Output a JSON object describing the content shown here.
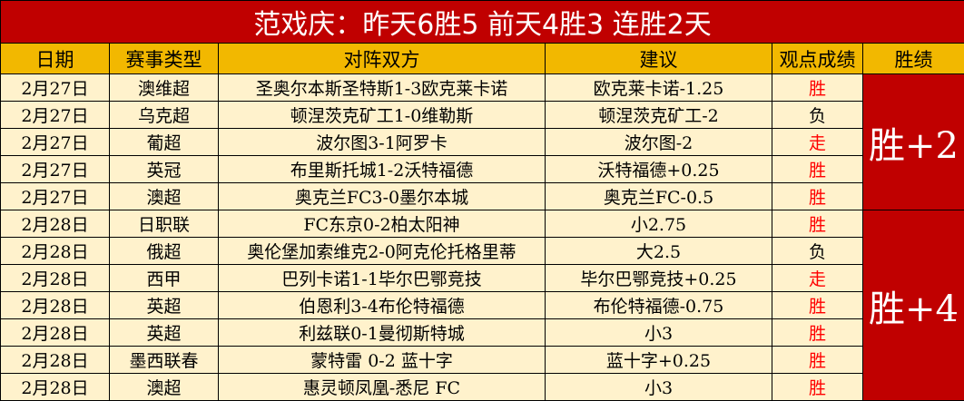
{
  "title": "范戏庆：昨天6胜5 前天4胜3 连胜2天",
  "headers": [
    "日期",
    "赛事类型",
    "对阵双方",
    "建议",
    "观点成绩",
    "胜绩"
  ],
  "colors": {
    "title_bg": "#c00000",
    "header_bg": "#f2b800",
    "row_bg": "#fff2cc",
    "win_text": "#ff0000"
  },
  "groups": [
    {
      "summary": "胜+2",
      "rows": [
        {
          "date": "2月27日",
          "league": "澳维超",
          "match": "圣奥尔本斯圣特斯1-3欧克莱卡诺",
          "pick": "欧克莱卡诺-1.25",
          "result": "胜"
        },
        {
          "date": "2月27日",
          "league": "乌克超",
          "match": "顿涅茨克矿工1-0维勒斯",
          "pick": "顿涅茨克矿工-2",
          "result": "负"
        },
        {
          "date": "2月27日",
          "league": "葡超",
          "match": "波尔图3-1阿罗卡",
          "pick": "波尔图-2",
          "result": "走"
        },
        {
          "date": "2月27日",
          "league": "英冠",
          "match": "布里斯托城1-2沃特福德",
          "pick": "沃特福德+0.25",
          "result": "胜"
        },
        {
          "date": "2月27日",
          "league": "澳超",
          "match": "奥克兰FC3-0墨尔本城",
          "pick": "奥克兰FC-0.5",
          "result": "胜"
        }
      ]
    },
    {
      "summary": "胜+4",
      "rows": [
        {
          "date": "2月28日",
          "league": "日职联",
          "match": "FC东京0-2柏太阳神",
          "pick": "小2.75",
          "result": "胜"
        },
        {
          "date": "2月28日",
          "league": "俄超",
          "match": "奥伦堡加索维克2-0阿克伦托格里蒂",
          "pick": "大2.5",
          "result": "负"
        },
        {
          "date": "2月28日",
          "league": "西甲",
          "match": "巴列卡诺1-1毕尔巴鄂竞技",
          "pick": "毕尔巴鄂竞技+0.25",
          "result": "走"
        },
        {
          "date": "2月28日",
          "league": "英超",
          "match": "伯恩利3-4布伦特福德",
          "pick": "布伦特福德-0.75",
          "result": "胜"
        },
        {
          "date": "2月28日",
          "league": "英超",
          "match": "利兹联0-1曼彻斯特城",
          "pick": "小3",
          "result": "胜"
        },
        {
          "date": "2月28日",
          "league": "墨西联春",
          "match": "蒙特雷 0-2 蓝十字",
          "pick": "蓝十字+0.25",
          "result": "胜"
        },
        {
          "date": "2月28日",
          "league": "澳超",
          "match": "惠灵顿凤凰-悉尼 FC",
          "pick": "小3",
          "result": "胜"
        }
      ]
    }
  ]
}
